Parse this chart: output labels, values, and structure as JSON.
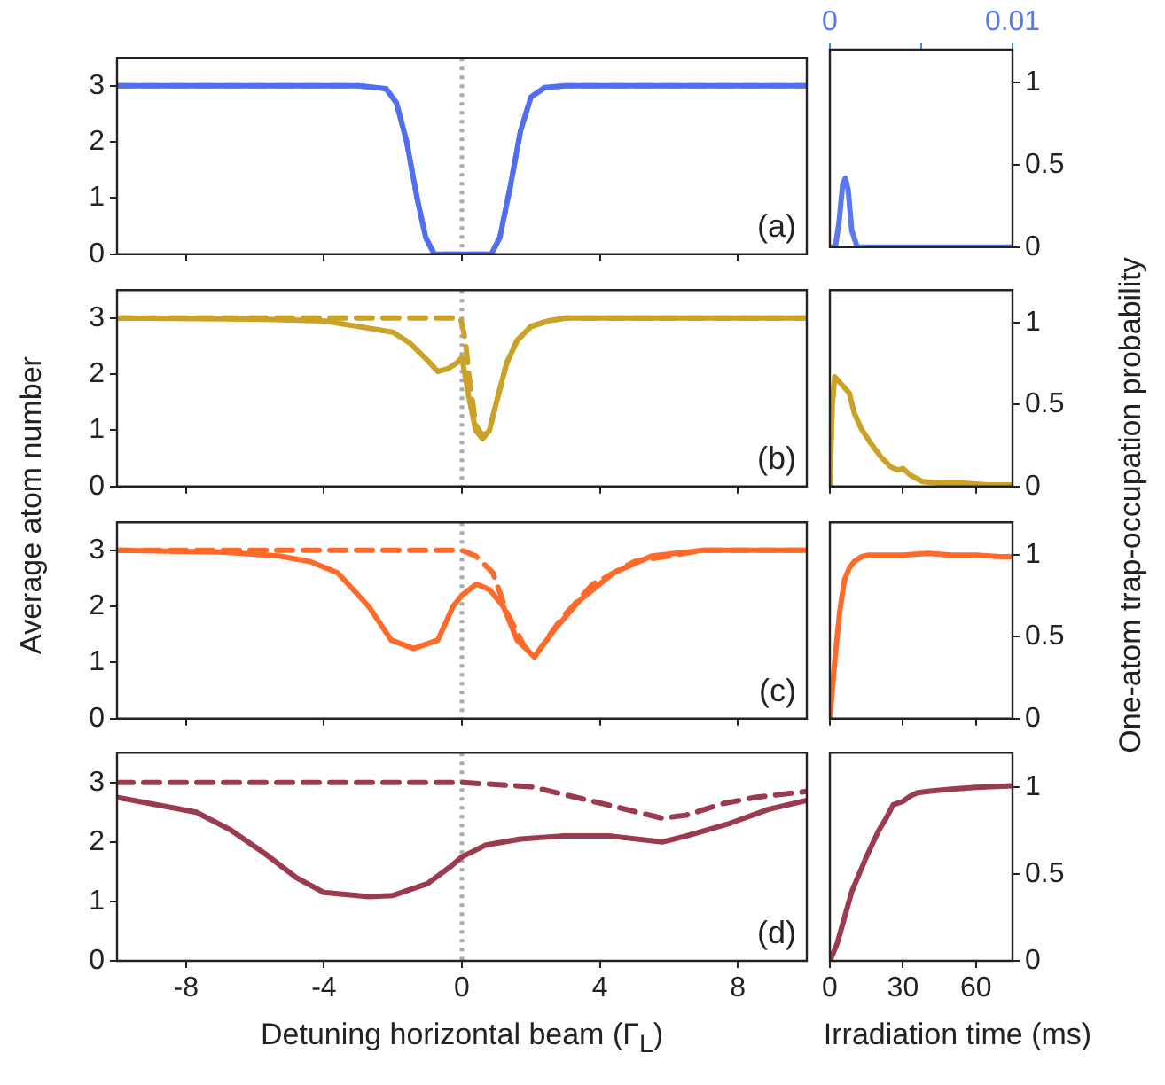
{
  "chart_data": [
    {
      "type": "line",
      "xlim": [
        -10,
        10
      ],
      "xticks": [
        -8,
        -4,
        0,
        4,
        8
      ],
      "ylim": [
        0,
        3.5
      ],
      "yticks": [
        0,
        1,
        2,
        3
      ],
      "tick_labels": "y",
      "ref_lines": [
        {
          "axis": "x",
          "value": 0,
          "color": "#aaaaaa",
          "line_style": "dotted"
        }
      ],
      "annotations": [
        "(a)"
      ],
      "series": [
        {
          "color": "#4f6ef0",
          "line_style": "solid",
          "x": [
            -10,
            -3,
            -2.2,
            -1.9,
            -1.6,
            -1.3,
            -1.05,
            -0.8,
            0.85,
            1.1,
            1.4,
            1.7,
            2.0,
            2.4,
            3,
            10
          ],
          "values": [
            3,
            3,
            2.95,
            2.7,
            2,
            1,
            0.3,
            0,
            0,
            0.3,
            1.2,
            2.2,
            2.8,
            2.97,
            3,
            3
          ]
        },
        {
          "color": "#8aa2f7",
          "line_style": "dashed",
          "x": [
            -10,
            -3,
            -2.2,
            -1.9,
            -1.6,
            -1.3,
            -1.05,
            -0.8,
            0.85,
            1.1,
            1.4,
            1.7,
            2.0,
            2.4,
            3,
            10
          ],
          "values": [
            3,
            3,
            2.95,
            2.7,
            2,
            1,
            0.3,
            0,
            0,
            0.3,
            1.2,
            2.2,
            2.8,
            2.97,
            3,
            3
          ]
        }
      ]
    },
    {
      "type": "line",
      "xlim": [
        0,
        0.01
      ],
      "xticks": [
        0,
        {
          "value": 0.005,
          "label": null
        },
        0.01
      ],
      "ylim": [
        0,
        1.2
      ],
      "yticks": [
        0,
        0.5,
        1
      ],
      "series": [
        {
          "color": "#5a78f0",
          "x": [
            0,
            0.0003,
            0.0005,
            0.0007,
            0.00085,
            0.001,
            0.0012,
            0.0015,
            0.01
          ],
          "values": [
            0,
            0,
            0.15,
            0.38,
            0.42,
            0.35,
            0.1,
            0,
            0
          ]
        }
      ]
    },
    {
      "type": "line",
      "xlim": [
        -10,
        10
      ],
      "xticks": [
        -8,
        -4,
        0,
        4,
        8
      ],
      "ylim": [
        0,
        3.5
      ],
      "yticks": [
        0,
        1,
        2,
        3
      ],
      "tick_labels": "y",
      "ylabel": "Average atom number",
      "ref_lines": [
        {
          "axis": "x",
          "value": 0,
          "color": "#aaaaaa",
          "line_style": "dotted"
        }
      ],
      "annotations": [
        "(b)"
      ],
      "series": [
        {
          "color": "#c9a227",
          "line_style": "solid",
          "x": [
            -10,
            -6,
            -4,
            -3,
            -2,
            -1.5,
            -1,
            -0.7,
            -0.4,
            -0.15,
            0,
            0.2,
            0.4,
            0.6,
            0.8,
            1.0,
            1.3,
            1.6,
            2.0,
            2.5,
            3,
            10
          ],
          "values": [
            3,
            2.98,
            2.95,
            2.85,
            2.75,
            2.55,
            2.25,
            2.05,
            2.1,
            2.2,
            2.3,
            1.6,
            1.0,
            0.85,
            1.0,
            1.5,
            2.2,
            2.6,
            2.85,
            2.95,
            3,
            3
          ]
        },
        {
          "color": "#c9a227",
          "line_style": "dashed",
          "x": [
            -10,
            -0.05,
            0,
            0.1,
            0.2,
            0.4,
            0.6,
            0.8,
            1.0,
            1.3,
            1.6,
            2.0,
            2.5,
            3,
            10
          ],
          "values": [
            3,
            3,
            2.9,
            2.6,
            2.0,
            1.1,
            0.9,
            1.0,
            1.5,
            2.2,
            2.6,
            2.85,
            2.95,
            3,
            3
          ]
        }
      ]
    },
    {
      "type": "line",
      "xlim": [
        0,
        75
      ],
      "xticks": [
        0,
        30,
        60
      ],
      "ylim": [
        0,
        1.2
      ],
      "yticks": [
        0,
        0.5,
        1
      ],
      "tick_labels": "y",
      "ylabel": "One-atom trap-occupation probability",
      "series": [
        {
          "color": "#c9a227",
          "x": [
            0,
            1,
            2,
            5,
            8,
            10,
            13,
            17,
            21,
            25,
            28,
            30,
            33,
            38,
            45,
            55,
            65,
            75
          ],
          "values": [
            0,
            0.5,
            0.67,
            0.62,
            0.57,
            0.45,
            0.35,
            0.26,
            0.18,
            0.12,
            0.1,
            0.11,
            0.07,
            0.03,
            0.02,
            0.02,
            0.01,
            0.01
          ]
        }
      ]
    },
    {
      "type": "line",
      "xlim": [
        -10,
        10
      ],
      "xticks": [
        -8,
        -4,
        0,
        4,
        8
      ],
      "ylim": [
        0,
        3.5
      ],
      "yticks": [
        0,
        1,
        2,
        3
      ],
      "tick_labels": "y",
      "ref_lines": [
        {
          "axis": "x",
          "value": 0,
          "color": "#aaaaaa",
          "line_style": "dotted"
        }
      ],
      "annotations": [
        "(c)"
      ],
      "series": [
        {
          "color": "#ff6a2a",
          "line_style": "solid",
          "x": [
            -10,
            -7,
            -5.3,
            -4.4,
            -3.6,
            -2.7,
            -2.05,
            -1.4,
            -0.7,
            -0.26,
            0,
            0.42,
            0.8,
            1.2,
            1.6,
            2.1,
            2.7,
            3.4,
            4.4,
            5.5,
            7,
            10
          ],
          "values": [
            3,
            2.97,
            2.9,
            2.8,
            2.6,
            2.0,
            1.4,
            1.25,
            1.4,
            2.0,
            2.2,
            2.4,
            2.3,
            2.0,
            1.4,
            1.1,
            1.6,
            2.1,
            2.6,
            2.9,
            3,
            3
          ]
        },
        {
          "color": "#ff6a2a",
          "line_style": "dashed",
          "x": [
            -10,
            0,
            0.4,
            0.9,
            1.3,
            1.8,
            2.1,
            2.9,
            3.8,
            5,
            7,
            10
          ],
          "values": [
            3,
            3,
            2.9,
            2.6,
            1.9,
            1.3,
            1.1,
            1.8,
            2.4,
            2.8,
            3,
            3
          ]
        }
      ]
    },
    {
      "type": "line",
      "xlim": [
        0,
        75
      ],
      "xticks": [
        0,
        30,
        60
      ],
      "ylim": [
        0,
        1.2
      ],
      "yticks": [
        0,
        0.5,
        1
      ],
      "tick_labels": "y",
      "series": [
        {
          "color": "#ff6a2a",
          "x": [
            0,
            2,
            4,
            6,
            8,
            10,
            13,
            16,
            20,
            30,
            40,
            50,
            60,
            70,
            75
          ],
          "values": [
            0,
            0.35,
            0.65,
            0.85,
            0.92,
            0.96,
            0.99,
            1.0,
            1.0,
            1.0,
            1.01,
            1.0,
            1.0,
            0.99,
            0.99
          ]
        }
      ]
    },
    {
      "type": "line",
      "xlim": [
        -10,
        10
      ],
      "xticks": [
        -8,
        -4,
        0,
        4,
        8
      ],
      "ylim": [
        0,
        3.5
      ],
      "yticks": [
        0,
        1,
        2,
        3
      ],
      "xlabel": "Detuning horizontal beam (Γ$_{L}$)",
      "ref_lines": [
        {
          "axis": "x",
          "value": 0,
          "color": "#aaaaaa",
          "line_style": "dotted"
        }
      ],
      "annotations": [
        "(d)"
      ],
      "series": [
        {
          "color": "#9b3b4f",
          "line_style": "solid",
          "x": [
            -10,
            -7.7,
            -6.7,
            -5.7,
            -4.8,
            -4,
            -2.7,
            -2,
            -1,
            -0.3,
            0,
            0.7,
            1.7,
            2.9,
            4.3,
            5.8,
            6.5,
            7.7,
            8.9,
            10
          ],
          "values": [
            2.75,
            2.5,
            2.2,
            1.8,
            1.4,
            1.15,
            1.08,
            1.1,
            1.3,
            1.6,
            1.75,
            1.95,
            2.05,
            2.1,
            2.1,
            2.0,
            2.1,
            2.3,
            2.55,
            2.7
          ]
        },
        {
          "color": "#9b3b4f",
          "line_style": "dashed",
          "x": [
            -10,
            0,
            2,
            3.1,
            4.4,
            5.8,
            6.5,
            7.6,
            8.5,
            10
          ],
          "values": [
            3,
            3,
            2.93,
            2.78,
            2.6,
            2.4,
            2.45,
            2.65,
            2.75,
            2.85
          ]
        }
      ]
    },
    {
      "type": "line",
      "xlim": [
        0,
        75
      ],
      "xticks": [
        0,
        30,
        60
      ],
      "ylim": [
        0,
        1.2
      ],
      "yticks": [
        0,
        0.5,
        1
      ],
      "xlabel": "Irradiation time (ms)",
      "series": [
        {
          "color": "#9b3b4f",
          "x": [
            0,
            3,
            5,
            9,
            12,
            15,
            20,
            23,
            26,
            30,
            33,
            36,
            42,
            50,
            60,
            75
          ],
          "values": [
            0,
            0.1,
            0.2,
            0.4,
            0.5,
            0.6,
            0.75,
            0.82,
            0.9,
            0.92,
            0.95,
            0.97,
            0.98,
            0.99,
            1.0,
            1.01
          ]
        }
      ]
    }
  ]
}
